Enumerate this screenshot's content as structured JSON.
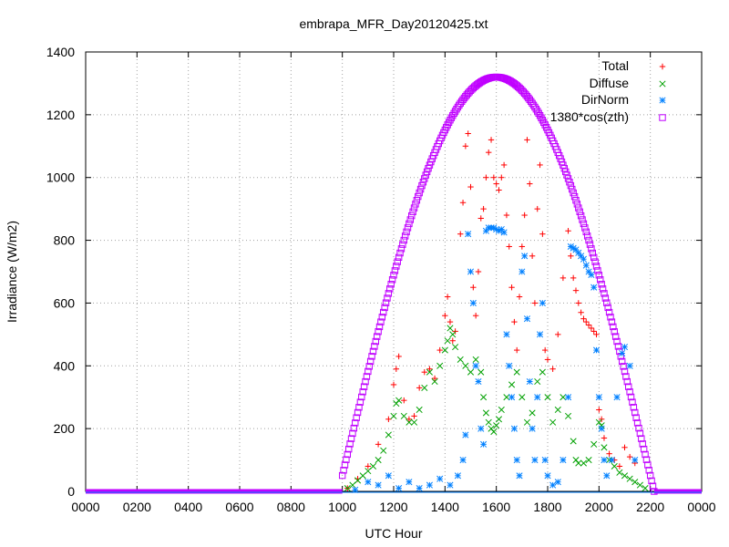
{
  "colors": {
    "total": "#ff0000",
    "diffuse": "#00a000",
    "dirnorm": "#0080ff",
    "cos": "#c000ff",
    "grid": "#a0a0a0",
    "frame": "#000000"
  },
  "chart_data": {
    "type": "scatter",
    "title": "embrapa_MFR_Day20120425.txt",
    "xlabel": "UTC Hour",
    "ylabel": "Irradiance (W/m2)",
    "xlim": [
      0,
      24
    ],
    "ylim": [
      0,
      1400
    ],
    "grid": true,
    "legend_position": "top-right",
    "x_ticks": [
      {
        "value": 0,
        "label": "0000"
      },
      {
        "value": 2,
        "label": "0200"
      },
      {
        "value": 4,
        "label": "0400"
      },
      {
        "value": 6,
        "label": "0600"
      },
      {
        "value": 8,
        "label": "0800"
      },
      {
        "value": 10,
        "label": "1000"
      },
      {
        "value": 12,
        "label": "1200"
      },
      {
        "value": 14,
        "label": "1400"
      },
      {
        "value": 16,
        "label": "1600"
      },
      {
        "value": 18,
        "label": "1800"
      },
      {
        "value": 20,
        "label": "2000"
      },
      {
        "value": 22,
        "label": "2200"
      },
      {
        "value": 24,
        "label": "0000"
      }
    ],
    "y_ticks": [
      0,
      200,
      400,
      600,
      800,
      1000,
      1200,
      1400
    ],
    "series": [
      {
        "name": "Total",
        "marker": "plus",
        "color": "#ff0000",
        "points": [
          [
            10.2,
            10
          ],
          [
            10.6,
            40
          ],
          [
            11.0,
            80
          ],
          [
            11.4,
            150
          ],
          [
            11.8,
            230
          ],
          [
            12.0,
            340
          ],
          [
            12.1,
            390
          ],
          [
            12.2,
            430
          ],
          [
            12.4,
            290
          ],
          [
            12.6,
            230
          ],
          [
            12.8,
            240
          ],
          [
            13.0,
            330
          ],
          [
            13.2,
            380
          ],
          [
            13.4,
            390
          ],
          [
            13.6,
            360
          ],
          [
            13.8,
            450
          ],
          [
            14.0,
            560
          ],
          [
            14.1,
            620
          ],
          [
            14.2,
            540
          ],
          [
            14.3,
            480
          ],
          [
            14.4,
            510
          ],
          [
            14.6,
            820
          ],
          [
            14.7,
            920
          ],
          [
            14.8,
            1100
          ],
          [
            14.9,
            1140
          ],
          [
            15.0,
            970
          ],
          [
            15.1,
            650
          ],
          [
            15.2,
            560
          ],
          [
            15.3,
            700
          ],
          [
            15.4,
            870
          ],
          [
            15.5,
            900
          ],
          [
            15.6,
            1000
          ],
          [
            15.7,
            1080
          ],
          [
            15.8,
            1120
          ],
          [
            15.9,
            1000
          ],
          [
            16.0,
            980
          ],
          [
            16.1,
            960
          ],
          [
            16.2,
            1000
          ],
          [
            16.3,
            1040
          ],
          [
            16.4,
            880
          ],
          [
            16.5,
            780
          ],
          [
            16.6,
            650
          ],
          [
            16.7,
            540
          ],
          [
            16.8,
            450
          ],
          [
            16.9,
            620
          ],
          [
            17.0,
            780
          ],
          [
            17.1,
            880
          ],
          [
            17.2,
            1120
          ],
          [
            17.3,
            980
          ],
          [
            17.4,
            750
          ],
          [
            17.5,
            600
          ],
          [
            17.6,
            900
          ],
          [
            17.7,
            1040
          ],
          [
            17.8,
            820
          ],
          [
            17.9,
            450
          ],
          [
            18.0,
            420
          ],
          [
            18.2,
            390
          ],
          [
            18.4,
            500
          ],
          [
            18.6,
            680
          ],
          [
            18.8,
            830
          ],
          [
            18.9,
            750
          ],
          [
            19.0,
            680
          ],
          [
            19.1,
            640
          ],
          [
            19.2,
            600
          ],
          [
            19.3,
            570
          ],
          [
            19.4,
            550
          ],
          [
            19.5,
            540
          ],
          [
            19.6,
            530
          ],
          [
            19.7,
            520
          ],
          [
            19.8,
            510
          ],
          [
            19.9,
            500
          ],
          [
            20.0,
            260
          ],
          [
            20.1,
            230
          ],
          [
            20.2,
            170
          ],
          [
            20.4,
            120
          ],
          [
            20.6,
            100
          ],
          [
            20.8,
            80
          ],
          [
            21.0,
            140
          ],
          [
            21.2,
            110
          ],
          [
            21.4,
            90
          ]
        ]
      },
      {
        "name": "Diffuse",
        "marker": "cross",
        "color": "#00a000",
        "points": [
          [
            10.2,
            10
          ],
          [
            10.4,
            20
          ],
          [
            10.6,
            35
          ],
          [
            10.8,
            50
          ],
          [
            11.0,
            65
          ],
          [
            11.2,
            80
          ],
          [
            11.4,
            100
          ],
          [
            11.6,
            130
          ],
          [
            11.8,
            180
          ],
          [
            12.0,
            240
          ],
          [
            12.1,
            280
          ],
          [
            12.2,
            290
          ],
          [
            12.4,
            240
          ],
          [
            12.6,
            220
          ],
          [
            12.8,
            220
          ],
          [
            13.0,
            260
          ],
          [
            13.2,
            330
          ],
          [
            13.4,
            380
          ],
          [
            13.6,
            350
          ],
          [
            13.8,
            400
          ],
          [
            14.0,
            450
          ],
          [
            14.1,
            480
          ],
          [
            14.2,
            520
          ],
          [
            14.3,
            500
          ],
          [
            14.4,
            460
          ],
          [
            14.6,
            420
          ],
          [
            14.8,
            400
          ],
          [
            15.0,
            380
          ],
          [
            15.2,
            420
          ],
          [
            15.4,
            380
          ],
          [
            15.5,
            300
          ],
          [
            15.6,
            250
          ],
          [
            15.7,
            220
          ],
          [
            15.8,
            200
          ],
          [
            15.9,
            190
          ],
          [
            16.0,
            210
          ],
          [
            16.1,
            230
          ],
          [
            16.2,
            260
          ],
          [
            16.4,
            300
          ],
          [
            16.6,
            340
          ],
          [
            16.8,
            380
          ],
          [
            17.0,
            300
          ],
          [
            17.2,
            220
          ],
          [
            17.4,
            250
          ],
          [
            17.6,
            350
          ],
          [
            17.8,
            380
          ],
          [
            18.0,
            300
          ],
          [
            18.2,
            220
          ],
          [
            18.4,
            260
          ],
          [
            18.6,
            300
          ],
          [
            18.8,
            240
          ],
          [
            19.0,
            160
          ],
          [
            19.1,
            100
          ],
          [
            19.2,
            90
          ],
          [
            19.4,
            90
          ],
          [
            19.6,
            100
          ],
          [
            19.8,
            150
          ],
          [
            20.0,
            220
          ],
          [
            20.1,
            210
          ],
          [
            20.2,
            140
          ],
          [
            20.4,
            100
          ],
          [
            20.6,
            80
          ],
          [
            20.8,
            60
          ],
          [
            21.0,
            50
          ],
          [
            21.2,
            40
          ],
          [
            21.4,
            30
          ],
          [
            21.6,
            20
          ],
          [
            21.8,
            10
          ]
        ]
      },
      {
        "name": "DirNorm",
        "marker": "star",
        "color": "#0080ff",
        "points": [
          [
            10.5,
            5
          ],
          [
            11.0,
            30
          ],
          [
            11.4,
            20
          ],
          [
            11.8,
            50
          ],
          [
            12.2,
            10
          ],
          [
            12.6,
            30
          ],
          [
            13.0,
            10
          ],
          [
            13.4,
            20
          ],
          [
            13.8,
            40
          ],
          [
            14.2,
            20
          ],
          [
            14.5,
            50
          ],
          [
            14.7,
            100
          ],
          [
            14.8,
            180
          ],
          [
            14.9,
            820
          ],
          [
            15.0,
            700
          ],
          [
            15.1,
            600
          ],
          [
            15.2,
            400
          ],
          [
            15.3,
            350
          ],
          [
            15.4,
            200
          ],
          [
            15.5,
            150
          ],
          [
            15.6,
            830
          ],
          [
            15.7,
            840
          ],
          [
            15.8,
            840
          ],
          [
            15.9,
            840
          ],
          [
            16.0,
            835
          ],
          [
            16.1,
            830
          ],
          [
            16.2,
            835
          ],
          [
            16.3,
            825
          ],
          [
            16.4,
            500
          ],
          [
            16.5,
            400
          ],
          [
            16.6,
            300
          ],
          [
            16.7,
            200
          ],
          [
            16.8,
            100
          ],
          [
            16.9,
            50
          ],
          [
            17.0,
            700
          ],
          [
            17.1,
            750
          ],
          [
            17.2,
            550
          ],
          [
            17.3,
            350
          ],
          [
            17.4,
            200
          ],
          [
            17.5,
            100
          ],
          [
            17.6,
            300
          ],
          [
            17.7,
            500
          ],
          [
            17.8,
            600
          ],
          [
            17.9,
            100
          ],
          [
            18.0,
            50
          ],
          [
            18.2,
            20
          ],
          [
            18.4,
            30
          ],
          [
            18.6,
            100
          ],
          [
            18.8,
            300
          ],
          [
            18.9,
            780
          ],
          [
            19.0,
            775
          ],
          [
            19.1,
            770
          ],
          [
            19.2,
            760
          ],
          [
            19.3,
            750
          ],
          [
            19.4,
            740
          ],
          [
            19.5,
            720
          ],
          [
            19.6,
            700
          ],
          [
            19.7,
            690
          ],
          [
            19.8,
            650
          ],
          [
            19.9,
            450
          ],
          [
            20.0,
            300
          ],
          [
            20.1,
            200
          ],
          [
            20.2,
            100
          ],
          [
            20.3,
            50
          ],
          [
            20.5,
            100
          ],
          [
            20.7,
            300
          ],
          [
            20.9,
            440
          ],
          [
            21.0,
            460
          ],
          [
            21.2,
            400
          ],
          [
            21.4,
            100
          ]
        ]
      },
      {
        "name": "1380*cos(zth)",
        "marker": "square",
        "color": "#c000ff",
        "curve": {
          "start": 10.0,
          "end": 22.15,
          "peak_hour": 16.0,
          "peak_value": 1320,
          "step": 0.05
        }
      }
    ]
  }
}
